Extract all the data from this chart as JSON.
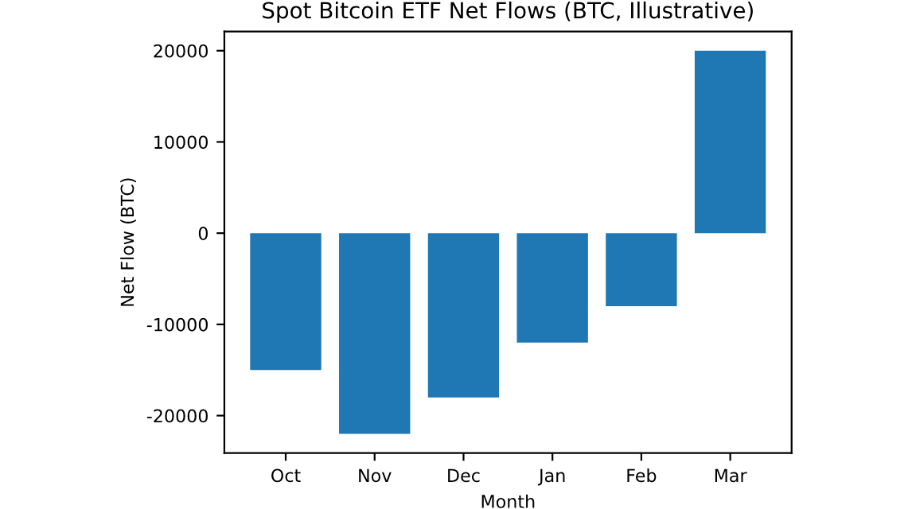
{
  "chart_data": {
    "type": "bar",
    "title": "Spot Bitcoin ETF Net Flows (BTC, Illustrative)",
    "xlabel": "Month",
    "ylabel": "Net Flow (BTC)",
    "categories": [
      "Oct",
      "Nov",
      "Dec",
      "Jan",
      "Feb",
      "Mar"
    ],
    "values": [
      -15000,
      -22000,
      -18000,
      -12000,
      -8000,
      20000
    ],
    "color": "#1f77b4",
    "ylim": [
      -24100,
      22100
    ],
    "yticks": [
      -20000,
      -10000,
      0,
      10000,
      20000
    ],
    "grid": false
  }
}
